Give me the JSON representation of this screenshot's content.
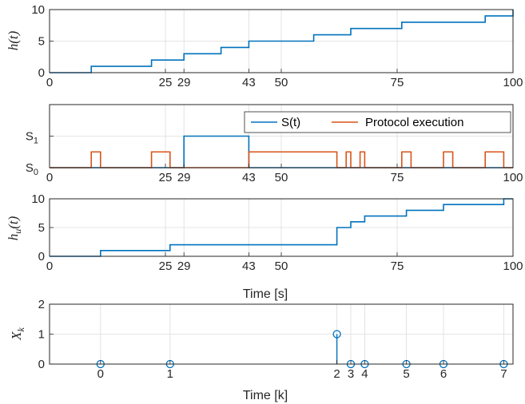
{
  "colors": {
    "series1": "#0072BD",
    "series2": "#D95319",
    "grid": "#dcdcdc",
    "axis": "#262626"
  },
  "chart_data": [
    {
      "type": "line",
      "ylabel": "h(t)",
      "xlim": [
        0,
        100
      ],
      "ylim": [
        0,
        10
      ],
      "xticks": [
        "0",
        "25",
        "29",
        "43",
        "50",
        "75",
        "100"
      ],
      "xtick_values": [
        0,
        25,
        29,
        43,
        50,
        75,
        100
      ],
      "yticks": [
        "0",
        "5",
        "10"
      ],
      "ytick_values": [
        0,
        5,
        10
      ],
      "grid": true,
      "series": [
        {
          "step": true,
          "x": [
            0,
            9,
            22,
            29,
            37,
            43,
            57,
            65,
            76,
            94,
            100
          ],
          "values": [
            0,
            1,
            2,
            3,
            4,
            5,
            6,
            7,
            8,
            9,
            10
          ]
        }
      ]
    },
    {
      "type": "line",
      "ylabel": "",
      "xlim": [
        0,
        100
      ],
      "ylim": [
        0,
        2
      ],
      "xticks": [
        "0",
        "25",
        "29",
        "43",
        "50",
        "75",
        "100"
      ],
      "xtick_values": [
        0,
        25,
        29,
        43,
        50,
        75,
        100
      ],
      "yticks": [
        "S0",
        "S1"
      ],
      "ytick_values": [
        0,
        1
      ],
      "grid": true,
      "legend": {
        "position": "top-right"
      },
      "series": [
        {
          "name": "S(t)",
          "step": true,
          "x": [
            0,
            29,
            43,
            100
          ],
          "values": [
            0,
            1,
            0,
            0
          ]
        },
        {
          "name": "Protocol execution",
          "step": true,
          "x": [
            0,
            9,
            11,
            22,
            26,
            43,
            62,
            64,
            65,
            67,
            68,
            71,
            75,
            76,
            78,
            85,
            87,
            94,
            98,
            100
          ],
          "values": [
            0,
            0.5,
            0,
            0.5,
            0,
            0.5,
            0,
            0.5,
            0,
            0.5,
            0,
            0,
            0,
            0.5,
            0,
            0.5,
            0,
            0.5,
            0,
            0
          ]
        }
      ]
    },
    {
      "type": "line",
      "ylabel": "hu(t)",
      "xlabel": "Time [s]",
      "xlim": [
        0,
        100
      ],
      "ylim": [
        0,
        10
      ],
      "xticks": [
        "0",
        "25",
        "29",
        "43",
        "50",
        "75",
        "100"
      ],
      "xtick_values": [
        0,
        25,
        29,
        43,
        50,
        75,
        100
      ],
      "yticks": [
        "0",
        "5",
        "10"
      ],
      "ytick_values": [
        0,
        5,
        10
      ],
      "grid": true,
      "series": [
        {
          "step": true,
          "x": [
            0,
            11,
            26,
            62,
            65,
            68,
            77,
            85,
            98,
            100
          ],
          "values": [
            0,
            1,
            2,
            5,
            6,
            7,
            8,
            9,
            10,
            10
          ]
        }
      ]
    },
    {
      "type": "scatter",
      "subtype": "stem",
      "ylabel": "Xk",
      "xlabel": "Time [k]",
      "ylim": [
        0,
        2
      ],
      "yticks": [
        "0",
        "1",
        "2"
      ],
      "ytick_values": [
        0,
        1,
        2
      ],
      "xticks": [
        "0",
        "1",
        "2",
        "3",
        "4",
        "5",
        "6",
        "7"
      ],
      "xtick_values": [
        11,
        26,
        62,
        65,
        68,
        77,
        85,
        98
      ],
      "xlim": [
        0,
        100
      ],
      "grid": true,
      "series": [
        {
          "x": [
            11,
            26,
            62,
            65,
            68,
            77,
            85,
            98
          ],
          "values": [
            0,
            0,
            1,
            0,
            0,
            0,
            0,
            0
          ]
        }
      ]
    }
  ]
}
